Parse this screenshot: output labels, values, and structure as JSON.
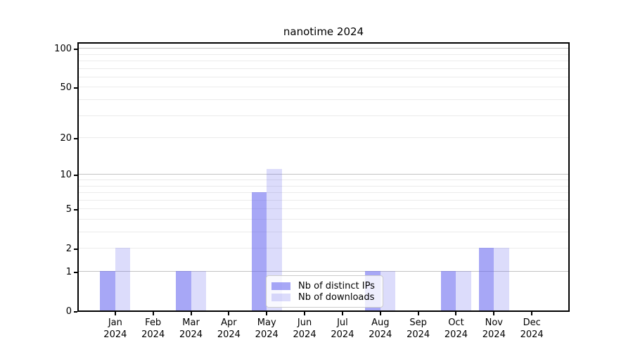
{
  "figure": {
    "background": "#ffffff"
  },
  "chart_data": {
    "type": "bar",
    "title": "nanotime 2024",
    "categories": [
      "Jan 2024",
      "Feb 2024",
      "Mar 2024",
      "Apr 2024",
      "May 2024",
      "Jun 2024",
      "Jul 2024",
      "Aug 2024",
      "Sep 2024",
      "Oct 2024",
      "Nov 2024",
      "Dec 2024"
    ],
    "series": [
      {
        "name": "Nb of distinct IPs",
        "color": "rgba(95,95,238,0.55)",
        "values": [
          1,
          0,
          1,
          0,
          7,
          0,
          0,
          1,
          0,
          1,
          2,
          0
        ]
      },
      {
        "name": "Nb of downloads",
        "color": "rgba(95,95,238,0.22)",
        "values": [
          2,
          0,
          1,
          0,
          11,
          0,
          0,
          1,
          0,
          1,
          2,
          0
        ]
      }
    ],
    "xlabel": "",
    "ylabel": "",
    "y_scale": "log10(value+1)",
    "y_ticks": [
      0,
      1,
      2,
      5,
      10,
      20,
      50,
      100
    ],
    "ylim": [
      0,
      114
    ],
    "grid": true,
    "legend_position": "inside lower-center",
    "colors": {
      "major_grid": "#c3c3c3",
      "minor_grid": "#ebebeb",
      "spine": "#000000",
      "text": "#000000"
    }
  }
}
